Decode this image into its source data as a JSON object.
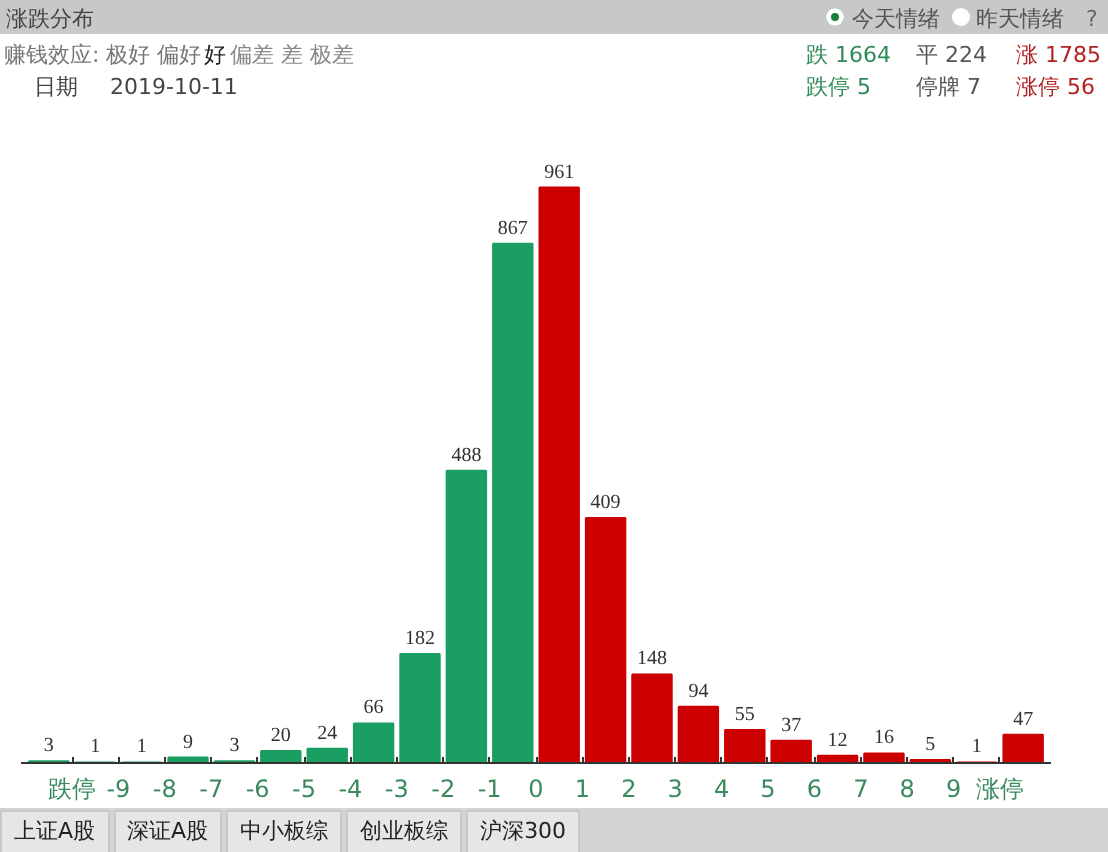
{
  "chart_data": {
    "type": "bar",
    "title": "涨跌分布",
    "categories": [
      null,
      "跌停",
      "-9",
      "-8",
      "-7",
      "-6",
      "-5",
      "-4",
      "-3",
      "-2",
      "-1",
      "0",
      "1",
      "2",
      "3",
      "4",
      "5",
      "6",
      "7",
      "8",
      "9",
      "涨停"
    ],
    "values": [
      3,
      1,
      1,
      9,
      3,
      20,
      24,
      66,
      182,
      488,
      867,
      961,
      409,
      148,
      94,
      55,
      37,
      12,
      16,
      5,
      1,
      47
    ],
    "colors": [
      "#1a9e62",
      "#1a9e62",
      "#1a9e62",
      "#1a9e62",
      "#1a9e62",
      "#1a9e62",
      "#1a9e62",
      "#1a9e62",
      "#1a9e62",
      "#1a9e62",
      "#1a9e62",
      "#cc0000",
      "#cc0000",
      "#cc0000",
      "#cc0000",
      "#cc0000",
      "#cc0000",
      "#cc0000",
      "#cc0000",
      "#cc0000",
      "#cc0000",
      "#cc0000"
    ],
    "data_labels": true,
    "grid": false,
    "tick_labels": "x",
    "annotations": [
      "今天情绪",
      "昨天情绪",
      "?",
      "赚钱效应: 极好 偏好",
      "好",
      "偏差 差 极差",
      "跌 1664",
      "平 224",
      "涨 1785",
      "日期",
      "2019-10-11",
      "跌停 5",
      "停牌 7",
      "涨停 56",
      "上证A股",
      "深证A股",
      "中小板综",
      "创业板综",
      "沪深300"
    ]
  }
}
